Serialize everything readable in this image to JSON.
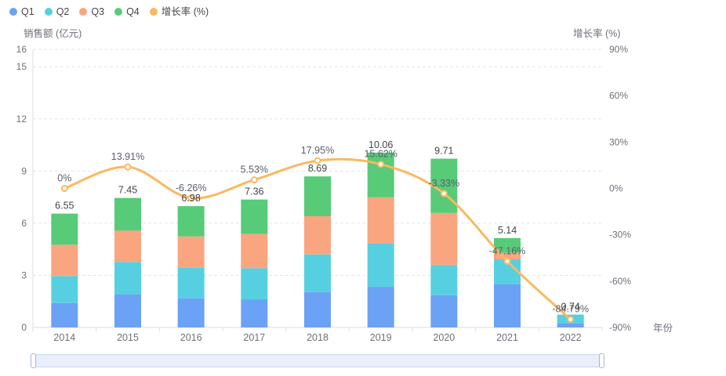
{
  "chart_data": {
    "type": "bar",
    "subtype": "stacked-bars-with-line-overlay",
    "categories": [
      "2014",
      "2015",
      "2016",
      "2017",
      "2018",
      "2019",
      "2020",
      "2021",
      "2022"
    ],
    "series": [
      {
        "name": "Q1",
        "type": "bar",
        "stack": "total",
        "color": "#6CA2F5",
        "values": [
          1.41,
          1.91,
          1.68,
          1.62,
          2.04,
          2.34,
          1.86,
          2.48,
          0.24
        ]
      },
      {
        "name": "Q2",
        "type": "bar",
        "stack": "total",
        "color": "#56D0E0",
        "values": [
          1.55,
          1.86,
          1.76,
          1.79,
          2.16,
          2.5,
          1.73,
          1.44,
          0.5
        ]
      },
      {
        "name": "Q3",
        "type": "bar",
        "stack": "total",
        "color": "#F9A57F",
        "values": [
          1.8,
          1.8,
          1.8,
          1.97,
          2.2,
          2.65,
          3.0,
          0.38,
          0.0
        ]
      },
      {
        "name": "Q4",
        "type": "bar",
        "stack": "total",
        "color": "#57CB78",
        "values": [
          1.79,
          1.88,
          1.74,
          1.98,
          2.29,
          2.57,
          3.12,
          0.84,
          0.0
        ]
      },
      {
        "name": "增长率 (%)",
        "type": "line",
        "axis": "right",
        "color": "#FBB861",
        "smooth": true,
        "values": [
          0,
          13.91,
          -6.26,
          5.53,
          17.95,
          15.62,
          -3.33,
          -47.16,
          -84.79
        ],
        "labels": [
          "0%",
          "13.91%",
          "-6.26%",
          "5.53%",
          "17.95%",
          "15.62%",
          "-3.33%",
          "-47.16%",
          "-84.79%"
        ]
      }
    ],
    "bar_totals": [
      "6.55",
      "7.45",
      "6.98",
      "7.36",
      "8.69",
      "10.06",
      "9.71",
      "5.14",
      "0.74"
    ],
    "y_axis_left": {
      "name": "销售额 (亿元)",
      "min": 0,
      "max": 16,
      "ticks": [
        0,
        3,
        6,
        9,
        12,
        15,
        16
      ]
    },
    "y_axis_right": {
      "name": "增长率 (%)",
      "min": -90,
      "max": 90,
      "ticks": [
        90,
        60,
        30,
        0,
        -30,
        -60,
        -90
      ],
      "suffix": "%"
    },
    "x_axis": {
      "name": "年份"
    },
    "legend_position": "top-left",
    "grid_dashed": true
  },
  "colors": {
    "grid_line": "#E0E6F1",
    "axis_line": "#D9DEE9",
    "tick_label": "#6E7079",
    "axis_name": "#6E7079",
    "total_label": "#454545",
    "growth_label": "#5A5F6B",
    "background": "#FFFFFF"
  },
  "datazoom": {
    "track_color": "#E9EEF9",
    "border_color": "#CCD7EE",
    "handle_color": "#FFFFFF",
    "handle_border": "#A8B6D4"
  }
}
